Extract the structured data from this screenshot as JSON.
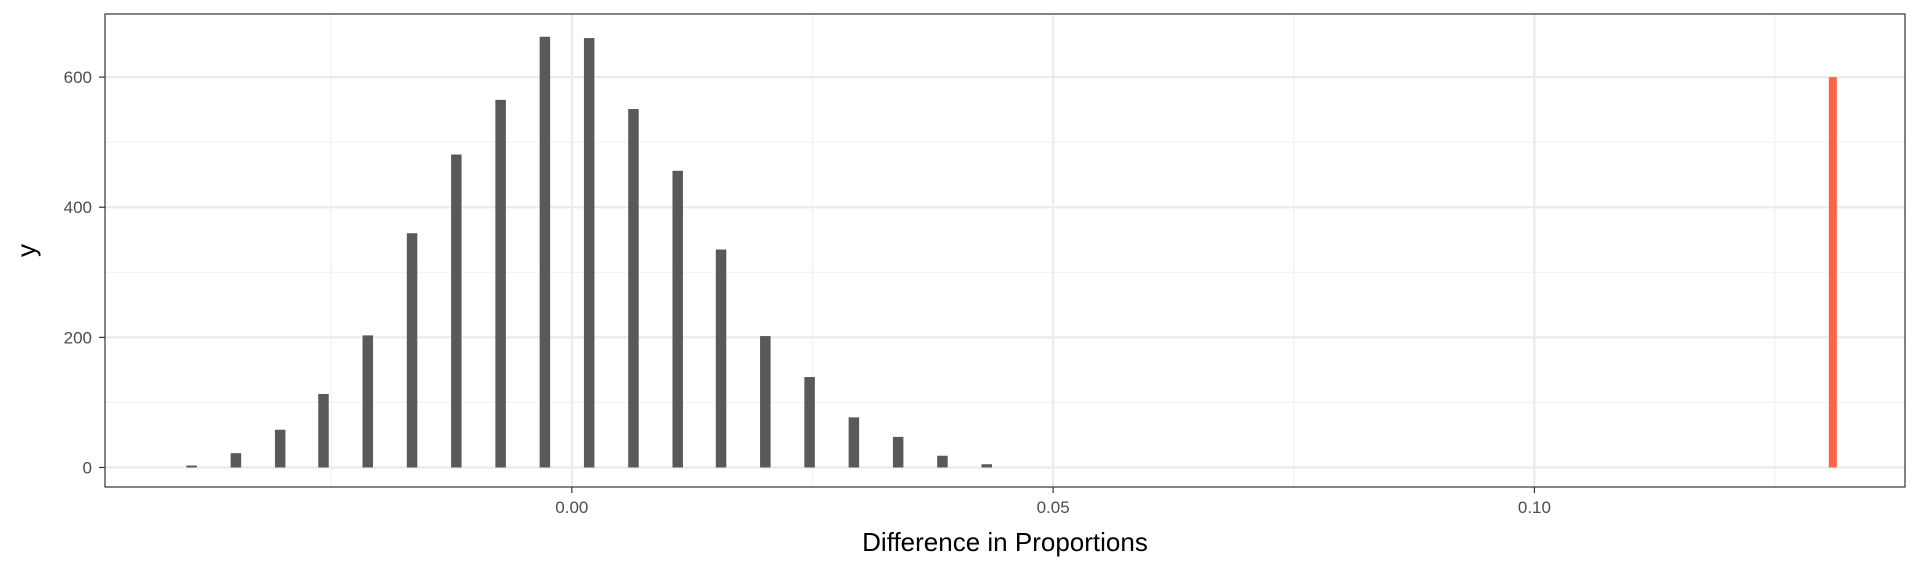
{
  "chart_data": {
    "type": "bar",
    "title": "",
    "xlabel": "Difference in Proportions",
    "ylabel": "y",
    "xlim": [
      -0.0485,
      0.1385
    ],
    "ylim": [
      -30,
      697
    ],
    "x_ticks": [
      0.0,
      0.05,
      0.1
    ],
    "x_tick_labels": [
      "0.00",
      "0.05",
      "0.10"
    ],
    "y_ticks": [
      0,
      200,
      400,
      600
    ],
    "y_tick_labels": [
      "0",
      "200",
      "400",
      "600"
    ],
    "grid": true,
    "legend": "none",
    "series": [
      {
        "color": "#595959",
        "points": [
          {
            "x": -0.0395,
            "y": 3
          },
          {
            "x": -0.0349,
            "y": 22
          },
          {
            "x": -0.0303,
            "y": 58
          },
          {
            "x": -0.0258,
            "y": 113
          },
          {
            "x": -0.0212,
            "y": 203
          },
          {
            "x": -0.0166,
            "y": 360
          },
          {
            "x": -0.012,
            "y": 481
          },
          {
            "x": -0.0074,
            "y": 565
          },
          {
            "x": -0.0028,
            "y": 662
          },
          {
            "x": 0.0018,
            "y": 660
          },
          {
            "x": 0.0064,
            "y": 551
          },
          {
            "x": 0.011,
            "y": 456
          },
          {
            "x": 0.0155,
            "y": 335
          },
          {
            "x": 0.0201,
            "y": 202
          },
          {
            "x": 0.0247,
            "y": 139
          },
          {
            "x": 0.0293,
            "y": 77
          },
          {
            "x": 0.0339,
            "y": 47
          },
          {
            "x": 0.0385,
            "y": 18
          },
          {
            "x": 0.0431,
            "y": 5
          }
        ]
      },
      {
        "color": "#ff6347",
        "points": [
          {
            "x": 0.131,
            "y": 600
          }
        ]
      }
    ]
  }
}
